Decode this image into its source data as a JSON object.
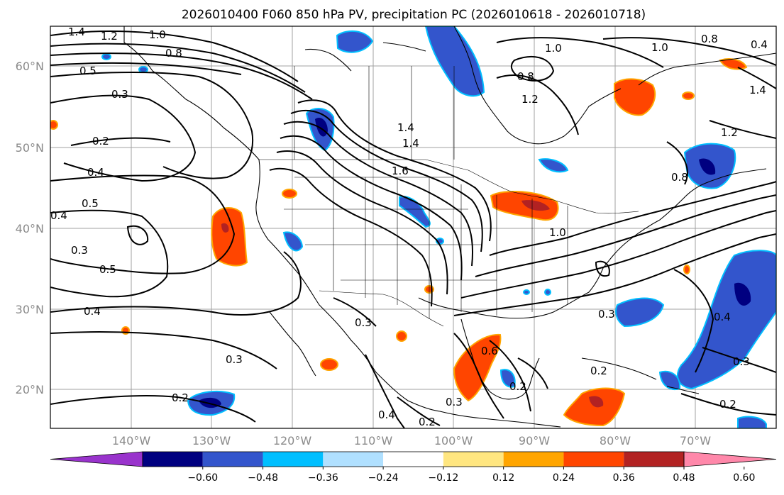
{
  "title": "2026010400 F060 850 hPa PV, precipitation PC (2026010618 - 2026010718)",
  "lat_labels": [
    "60°N",
    "50°N",
    "40°N",
    "30°N",
    "20°N"
  ],
  "lon_labels": [
    "140°W",
    "130°W",
    "120°W",
    "110°W",
    "100°W",
    "90°W",
    "80°W",
    "70°W"
  ],
  "colorbar": {
    "ticks": [
      "−0.60",
      "−0.48",
      "−0.36",
      "−0.24",
      "−0.12",
      "0.12",
      "0.24",
      "0.36",
      "0.48",
      "0.60"
    ],
    "colors": [
      "#9933cc",
      "#000080",
      "#3355cc",
      "#00bfff",
      "#b0e0ff",
      "#ffffff",
      "#ffe680",
      "#ffa500",
      "#ff4500",
      "#b22222",
      "#ff88aa"
    ]
  },
  "contour_labels": [
    {
      "text": "1.4"
    },
    {
      "text": "1.2"
    },
    {
      "text": "1.0"
    },
    {
      "text": "0.8"
    },
    {
      "text": "0.5"
    },
    {
      "text": "0.3"
    },
    {
      "text": "0.2"
    },
    {
      "text": "0.4"
    },
    {
      "text": "0.5"
    },
    {
      "text": "0.4"
    },
    {
      "text": "0.3"
    },
    {
      "text": "0.5"
    },
    {
      "text": "0.4"
    },
    {
      "text": "0.3"
    },
    {
      "text": "0.2"
    },
    {
      "text": "1.4"
    },
    {
      "text": "1.4"
    },
    {
      "text": "1.6"
    },
    {
      "text": "1.0"
    },
    {
      "text": "0.8"
    },
    {
      "text": "1.2"
    },
    {
      "text": "1.0"
    },
    {
      "text": "1.0"
    },
    {
      "text": "0.8"
    },
    {
      "text": "0.4"
    },
    {
      "text": "1.4"
    },
    {
      "text": "1.2"
    },
    {
      "text": "0.3"
    },
    {
      "text": "0.6"
    },
    {
      "text": "0.3"
    },
    {
      "text": "0.2"
    },
    {
      "text": "0.4"
    },
    {
      "text": "0.2"
    },
    {
      "text": "0.3"
    },
    {
      "text": "0.4"
    },
    {
      "text": "0.3"
    },
    {
      "text": "0.2"
    },
    {
      "text": "0.2"
    },
    {
      "text": "0.8"
    }
  ]
}
